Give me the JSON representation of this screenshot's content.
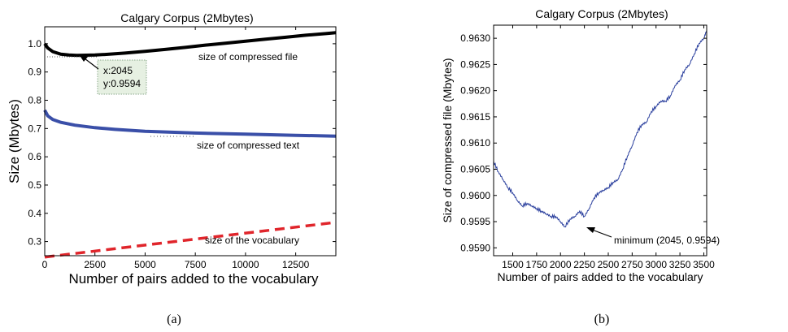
{
  "chart_data": [
    {
      "type": "line",
      "panel_label": "(a)",
      "title": "Calgary Corpus (2Mbytes)",
      "xlabel": "Number of pairs added to the vocabulary",
      "ylabel": "Size (Mbytes)",
      "xlim": [
        0,
        14500
      ],
      "ylim": [
        0.25,
        1.06
      ],
      "xticks": [
        0,
        2500,
        5000,
        7500,
        10000,
        12500
      ],
      "xtick_labels": [
        "0",
        "2500",
        "5000",
        "7500",
        "10000",
        "12500"
      ],
      "yticks": [
        0.3,
        0.4,
        0.5,
        0.6,
        0.7,
        0.8,
        0.9,
        1.0
      ],
      "ytick_labels": [
        "0.3",
        "0.4",
        "0.5",
        "0.6",
        "0.7",
        "0.8",
        "0.9",
        "1.0"
      ],
      "grid": false,
      "series": [
        {
          "label": "size of compressed file",
          "color": "#000000",
          "style": "solid",
          "x": [
            0,
            150,
            400,
            800,
            1200,
            1600,
            2045,
            2500,
            3000,
            4000,
            5000,
            6000,
            7000,
            8000,
            9000,
            10000,
            11000,
            12000,
            13000,
            14000,
            14500
          ],
          "y": [
            1.0,
            0.985,
            0.972,
            0.963,
            0.96,
            0.959,
            0.9594,
            0.96,
            0.962,
            0.967,
            0.973,
            0.98,
            0.987,
            0.995,
            1.002,
            1.009,
            1.016,
            1.023,
            1.03,
            1.036,
            1.039
          ]
        },
        {
          "label": "size of compressed text",
          "color": "#3a4fa8",
          "style": "solid",
          "x": [
            0,
            150,
            400,
            800,
            1500,
            2500,
            3500,
            5000,
            7500,
            10000,
            12500,
            14500
          ],
          "y": [
            0.765,
            0.745,
            0.732,
            0.722,
            0.712,
            0.703,
            0.697,
            0.69,
            0.684,
            0.68,
            0.676,
            0.673
          ]
        },
        {
          "label": "size of the vocabulary",
          "color": "#e0252b",
          "style": "dashed",
          "x": [
            0,
            14500
          ],
          "y": [
            0.245,
            0.368
          ]
        }
      ],
      "annotations": [
        {
          "text_lines": [
            "x:2045",
            "y:0.9594"
          ],
          "x": 2045,
          "y": 0.9594
        }
      ]
    },
    {
      "type": "line",
      "panel_label": "(b)",
      "title": "Calgary Corpus (2Mbytes)",
      "xlabel": "Number of pairs added to the vocabulary",
      "ylabel": "Size of compressed file (Mbytes)",
      "xlim": [
        1300,
        3530
      ],
      "ylim": [
        0.95885,
        0.96325
      ],
      "xticks": [
        1500,
        1750,
        2000,
        2250,
        2500,
        2750,
        3000,
        3250,
        3500
      ],
      "xtick_labels": [
        "1500",
        "1750",
        "2000",
        "2250",
        "2500",
        "2750",
        "3000",
        "3250",
        "3500"
      ],
      "yticks": [
        0.959,
        0.9595,
        0.96,
        0.9605,
        0.961,
        0.9615,
        0.962,
        0.9625,
        0.963
      ],
      "ytick_labels": [
        "0.9590",
        "0.9595",
        "0.9600",
        "0.9605",
        "0.9610",
        "0.9615",
        "0.9620",
        "0.9625",
        "0.9630"
      ],
      "grid": false,
      "series": [
        {
          "color": "#2a3f9d",
          "style": "solid",
          "x": [
            1300,
            1350,
            1400,
            1450,
            1500,
            1550,
            1600,
            1650,
            1700,
            1750,
            1800,
            1850,
            1900,
            1950,
            2000,
            2045,
            2100,
            2150,
            2200,
            2250,
            2300,
            2350,
            2400,
            2450,
            2500,
            2550,
            2600,
            2650,
            2700,
            2750,
            2800,
            2850,
            2900,
            2950,
            3000,
            3050,
            3100,
            3150,
            3200,
            3250,
            3300,
            3350,
            3400,
            3450,
            3500,
            3530
          ],
          "y": [
            0.96065,
            0.96045,
            0.9603,
            0.96015,
            0.96005,
            0.9599,
            0.9598,
            0.95985,
            0.9598,
            0.95975,
            0.9597,
            0.95965,
            0.9596,
            0.9596,
            0.9595,
            0.9594,
            0.95955,
            0.9596,
            0.9597,
            0.9596,
            0.95975,
            0.95995,
            0.96005,
            0.9601,
            0.96015,
            0.96025,
            0.9603,
            0.9605,
            0.96075,
            0.96095,
            0.9612,
            0.96135,
            0.9614,
            0.9616,
            0.9617,
            0.9618,
            0.9618,
            0.9619,
            0.9621,
            0.9622,
            0.9624,
            0.9625,
            0.9627,
            0.9629,
            0.963,
            0.96315
          ]
        }
      ],
      "annotations": [
        {
          "text": "minimum (2045, 0.9594)",
          "x": 2045,
          "y": 0.9594
        }
      ]
    }
  ]
}
